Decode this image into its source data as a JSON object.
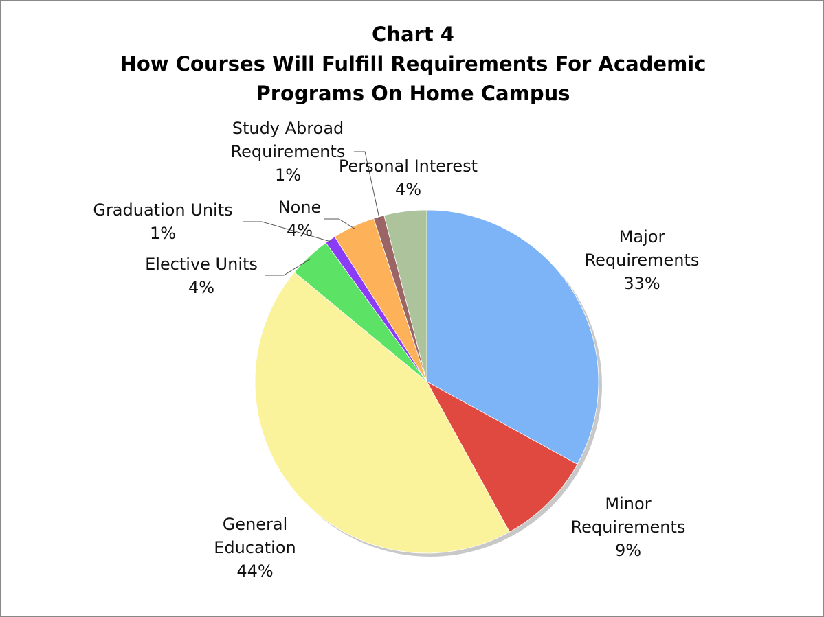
{
  "chart_data": {
    "type": "pie",
    "title": "Chart 4",
    "subtitle": "How Courses Will Fulfill Requirements For Academic Programs On Home Campus",
    "categories": [
      "Major Requirements",
      "Minor Requirements",
      "General Education",
      "Elective Units",
      "Graduation Units",
      "None",
      "Study Abroad Requirements",
      "Personal Interest"
    ],
    "values": [
      33,
      9,
      44,
      4,
      1,
      4,
      1,
      4
    ],
    "value_labels": [
      "33%",
      "9%",
      "44%",
      "4%",
      "1%",
      "4%",
      "1%",
      "4%"
    ],
    "colors": [
      "#7db4f7",
      "#e0493f",
      "#faf39c",
      "#5ce265",
      "#8a3cf7",
      "#fdb25a",
      "#9b6465",
      "#adc39b"
    ]
  }
}
